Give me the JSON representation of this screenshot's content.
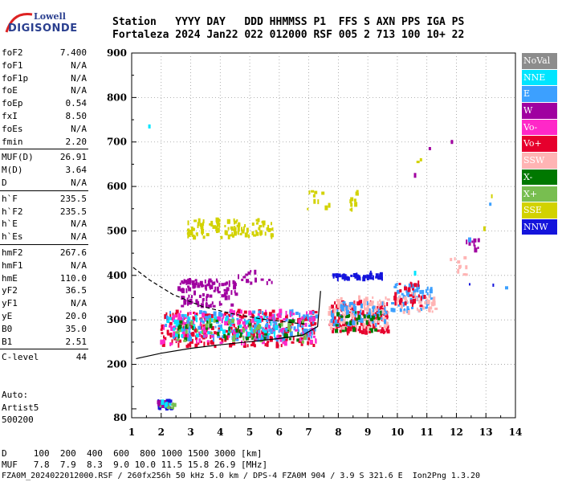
{
  "logo": {
    "line1": "Lowell",
    "line2": "DIGISONDE"
  },
  "header": {
    "line1": "Station   YYYY DAY   DDD HHMMSS P1  FFS S AXN PPS IGA PS",
    "line2": "Fortaleza 2024 Jan22 022 012000 RSF 005 2 713 100 10+ 22"
  },
  "params": {
    "group1": [
      {
        "label": "foF2",
        "value": "7.400"
      },
      {
        "label": "foF1",
        "value": "N/A"
      },
      {
        "label": "foF1p",
        "value": "N/A"
      },
      {
        "label": "foE",
        "value": "N/A"
      },
      {
        "label": "foEp",
        "value": "0.54"
      },
      {
        "label": "fxI",
        "value": "8.50"
      },
      {
        "label": "foEs",
        "value": "N/A"
      },
      {
        "label": "fmin",
        "value": "2.20"
      }
    ],
    "group2": [
      {
        "label": "MUF(D)",
        "value": "26.91"
      },
      {
        "label": "M(D)",
        "value": "3.64"
      },
      {
        "label": "D",
        "value": "N/A"
      }
    ],
    "group3": [
      {
        "label": "h`F",
        "value": "235.5"
      },
      {
        "label": "h`F2",
        "value": "235.5"
      },
      {
        "label": "h`E",
        "value": "N/A"
      },
      {
        "label": "h`Es",
        "value": "N/A"
      }
    ],
    "group4": [
      {
        "label": "hmF2",
        "value": "267.6"
      },
      {
        "label": "hmF1",
        "value": "N/A"
      },
      {
        "label": "hmE",
        "value": "110.0"
      },
      {
        "label": "yF2",
        "value": "36.5"
      },
      {
        "label": "yF1",
        "value": "N/A"
      },
      {
        "label": "yE",
        "value": "20.0"
      },
      {
        "label": "B0",
        "value": "35.0"
      },
      {
        "label": "B1",
        "value": "2.51"
      }
    ],
    "group5": [
      {
        "label": "C-level",
        "value": "44"
      }
    ]
  },
  "auto": {
    "line1": "Auto:",
    "line2": "Artist5",
    "line3": "500200"
  },
  "legend": [
    {
      "name": "NoVal",
      "color": "#8c8c8c"
    },
    {
      "name": "NNE",
      "color": "#00e5ff"
    },
    {
      "name": "E",
      "color": "#3ca0ff"
    },
    {
      "name": "W",
      "color": "#a000a0"
    },
    {
      "name": "Vo-",
      "color": "#ff28c8"
    },
    {
      "name": "Vo+",
      "color": "#e6002d"
    },
    {
      "name": "SSW",
      "color": "#ffb4b4"
    },
    {
      "name": "X-",
      "color": "#007800"
    },
    {
      "name": "X+",
      "color": "#78be50"
    },
    {
      "name": "SSE",
      "color": "#d2d200"
    },
    {
      "name": "NNW",
      "color": "#1414dc"
    }
  ],
  "footer": {
    "line1": "D     100  200  400  600  800 1000 1500 3000 [km]",
    "line2": "MUF   7.8  7.9  8.3  9.0 10.0 11.5 15.8 26.9 [MHz]",
    "line3": "FZA0M_2024022012000.RSF / 260fx256h 50 kHz 5.0 km / DPS-4 FZA0M 904 / 3.9 S 321.6 E  Ion2Png 1.3.20"
  },
  "chart_data": {
    "type": "scatter",
    "xlim": [
      1,
      14
    ],
    "ylim": [
      80,
      900
    ],
    "xticks": [
      "1",
      "2",
      "3",
      "4",
      "5",
      "6",
      "7",
      "8",
      "9",
      "10",
      "11",
      "12",
      "13",
      "14"
    ],
    "yticks": [
      "80",
      "200",
      "300",
      "400",
      "500",
      "600",
      "700",
      "800",
      "900"
    ],
    "grid": true,
    "clusters": [
      {
        "series": "Vo+",
        "x0": 2.0,
        "x1": 7.3,
        "y0": 240,
        "y1": 320,
        "count": 260
      },
      {
        "series": "E",
        "x0": 2.0,
        "x1": 7.3,
        "y0": 255,
        "y1": 320,
        "count": 180
      },
      {
        "series": "Vo-",
        "x0": 2.0,
        "x1": 7.3,
        "y0": 245,
        "y1": 320,
        "count": 140
      },
      {
        "series": "NNE",
        "x0": 2.2,
        "x1": 6.0,
        "y0": 260,
        "y1": 310,
        "count": 60
      },
      {
        "series": "X-",
        "x0": 2.5,
        "x1": 7.0,
        "y0": 250,
        "y1": 300,
        "count": 40
      },
      {
        "series": "X+",
        "x0": 2.5,
        "x1": 7.0,
        "y0": 250,
        "y1": 300,
        "count": 40
      },
      {
        "series": "W",
        "x0": 2.6,
        "x1": 4.6,
        "y0": 330,
        "y1": 390,
        "count": 110
      },
      {
        "series": "Vo+",
        "x0": 7.7,
        "x1": 9.7,
        "y0": 270,
        "y1": 340,
        "count": 140
      },
      {
        "series": "SSW",
        "x0": 7.7,
        "x1": 9.7,
        "y0": 280,
        "y1": 350,
        "count": 120
      },
      {
        "series": "E",
        "x0": 7.7,
        "x1": 9.7,
        "y0": 285,
        "y1": 340,
        "count": 60
      },
      {
        "series": "X-",
        "x0": 7.9,
        "x1": 9.5,
        "y0": 275,
        "y1": 320,
        "count": 30
      },
      {
        "series": "E",
        "x0": 9.8,
        "x1": 11.2,
        "y0": 320,
        "y1": 380,
        "count": 60
      },
      {
        "series": "SSW",
        "x0": 9.9,
        "x1": 11.4,
        "y0": 315,
        "y1": 360,
        "count": 40
      },
      {
        "series": "Vo+",
        "x0": 9.9,
        "x1": 11.0,
        "y0": 330,
        "y1": 385,
        "count": 30
      },
      {
        "series": "SSE",
        "x0": 2.9,
        "x1": 5.8,
        "y0": 485,
        "y1": 525,
        "count": 110
      },
      {
        "series": "SSE",
        "x0": 6.8,
        "x1": 8.8,
        "y0": 545,
        "y1": 590,
        "count": 20
      },
      {
        "series": "NNW",
        "x0": 7.8,
        "x1": 9.5,
        "y0": 392,
        "y1": 402,
        "count": 50
      },
      {
        "series": "NNW",
        "x0": 1.9,
        "x1": 2.4,
        "y0": 100,
        "y1": 118,
        "count": 40
      },
      {
        "series": "X+",
        "x0": 1.9,
        "x1": 2.5,
        "y0": 102,
        "y1": 112,
        "count": 16
      },
      {
        "series": "W",
        "x0": 1.9,
        "x1": 2.3,
        "y0": 105,
        "y1": 115,
        "count": 12
      },
      {
        "series": "NNE",
        "x0": 2.0,
        "x1": 2.3,
        "y0": 108,
        "y1": 118,
        "count": 6
      },
      {
        "series": "W",
        "x0": 4.6,
        "x1": 5.8,
        "y0": 380,
        "y1": 410,
        "count": 15
      },
      {
        "series": "SSW",
        "x0": 11.8,
        "x1": 12.4,
        "y0": 400,
        "y1": 440,
        "count": 10
      },
      {
        "series": "W",
        "x0": 12.3,
        "x1": 12.8,
        "y0": 455,
        "y1": 480,
        "count": 8
      }
    ],
    "points": [
      {
        "series": "NNE",
        "x": 1.6,
        "y": 735
      },
      {
        "series": "W",
        "x": 11.1,
        "y": 685
      },
      {
        "series": "W",
        "x": 11.85,
        "y": 700
      },
      {
        "series": "SSE",
        "x": 10.8,
        "y": 660
      },
      {
        "series": "SSE",
        "x": 13.2,
        "y": 578
      },
      {
        "series": "E",
        "x": 13.15,
        "y": 560
      },
      {
        "series": "SSE",
        "x": 12.95,
        "y": 505
      },
      {
        "series": "W",
        "x": 12.6,
        "y": 470
      },
      {
        "series": "E",
        "x": 12.45,
        "y": 480
      },
      {
        "series": "E",
        "x": 13.7,
        "y": 372
      },
      {
        "series": "NNW",
        "x": 13.25,
        "y": 378
      },
      {
        "series": "NNW",
        "x": 12.45,
        "y": 380
      },
      {
        "series": "W",
        "x": 10.6,
        "y": 625
      },
      {
        "series": "SSE",
        "x": 10.7,
        "y": 655
      },
      {
        "series": "NNE",
        "x": 10.6,
        "y": 405
      },
      {
        "series": "NNW",
        "x": 9.1,
        "y": 408
      }
    ],
    "curves": [
      {
        "style": "dashed",
        "x": [
          1.05,
          1.6,
          2.4,
          3.4,
          4.4,
          5.4,
          6.4,
          6.9
        ],
        "y": [
          418,
          390,
          357,
          330,
          314,
          302,
          294,
          290
        ]
      },
      {
        "style": "solid",
        "x": [
          1.15,
          2.0,
          3.0,
          4.0,
          5.0,
          6.0,
          6.8,
          7.3,
          7.4
        ],
        "y": [
          213,
          225,
          236,
          244,
          251,
          258,
          266,
          285,
          365
        ]
      }
    ]
  }
}
